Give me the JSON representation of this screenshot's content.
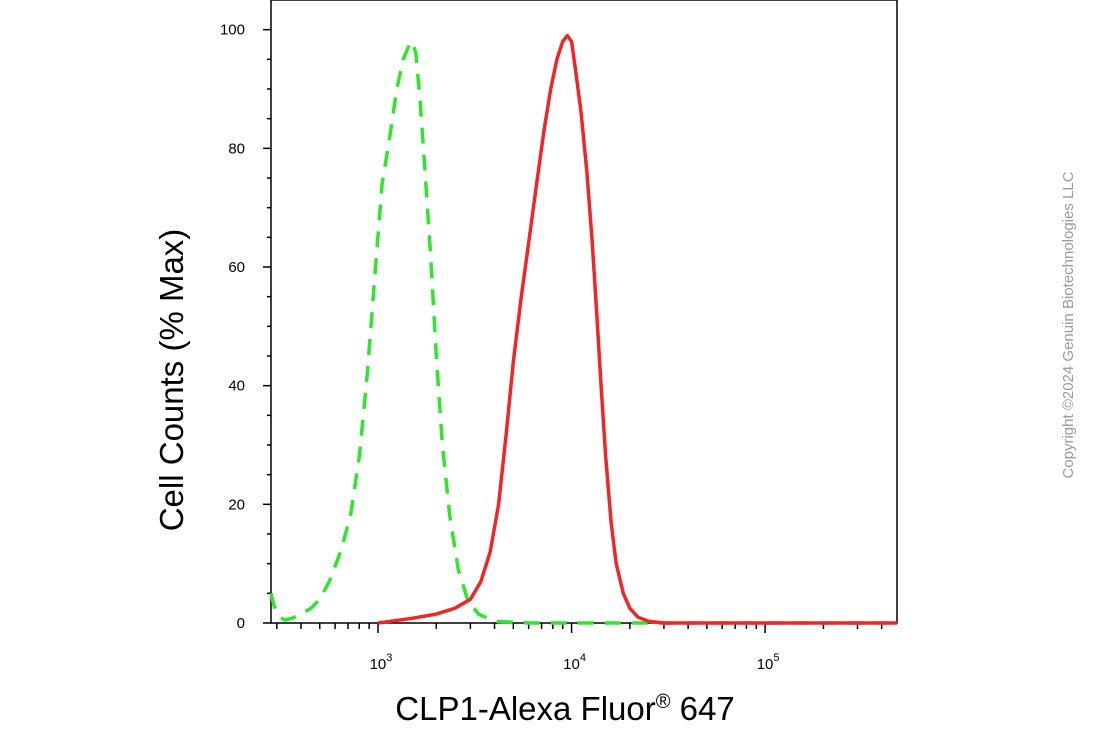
{
  "chart_data": {
    "type": "line",
    "title": "",
    "xlabel": "CLP1-Alexa Fluor",
    "xlabel_sup": "®",
    "xlabel_suffix": " 647",
    "ylabel": "Cell Counts (% Max)",
    "x_scale": "log",
    "xlim": [
      280,
      480000
    ],
    "ylim": [
      0,
      105
    ],
    "y_ticks": [
      "0",
      "20",
      "40",
      "60",
      "80",
      "100"
    ],
    "x_ticks": [
      {
        "base": "10",
        "exp": "3",
        "value": 1000
      },
      {
        "base": "10",
        "exp": "4",
        "value": 10000
      },
      {
        "base": "10",
        "exp": "5",
        "value": 100000
      }
    ],
    "grid": false,
    "legend": "none",
    "series": [
      {
        "color": "#2ee62e",
        "style": "dashed",
        "x": [
          280,
          290,
          310,
          330,
          360,
          400,
          450,
          500,
          560,
          640,
          720,
          800,
          880,
          960,
          1050,
          1150,
          1250,
          1350,
          1430,
          1500,
          1570,
          1650,
          1750,
          1870,
          2000,
          2150,
          2350,
          2600,
          2900,
          3300,
          4000,
          6000,
          10000,
          480000
        ],
        "y": [
          5,
          3,
          1,
          0.5,
          0.8,
          1.5,
          2.5,
          4,
          7,
          12,
          18,
          28,
          42,
          58,
          74,
          82,
          90,
          95,
          97,
          98,
          96,
          88,
          76,
          62,
          45,
          30,
          18,
          9,
          4,
          1.5,
          0.3,
          0,
          0,
          0
        ]
      },
      {
        "color": "#f22525",
        "style": "solid",
        "x": [
          1000,
          1500,
          2000,
          2500,
          3000,
          3400,
          3800,
          4200,
          4600,
          5000,
          5500,
          6000,
          6600,
          7200,
          7800,
          8400,
          9000,
          9500,
          10000,
          10500,
          11200,
          12000,
          12800,
          13500,
          14200,
          15000,
          16000,
          17000,
          18500,
          20000,
          22000,
          25000,
          30000,
          480000
        ],
        "y": [
          0,
          0.8,
          1.5,
          2.5,
          4,
          7,
          12,
          20,
          32,
          44,
          55,
          64,
          74,
          83,
          90,
          95,
          98,
          99,
          98,
          93,
          86,
          76,
          64,
          52,
          40,
          28,
          17,
          10,
          5,
          2.5,
          1,
          0.3,
          0,
          0
        ]
      }
    ]
  },
  "copyright": "Copyright ©2024 Genuin Biotechnologies LLC"
}
